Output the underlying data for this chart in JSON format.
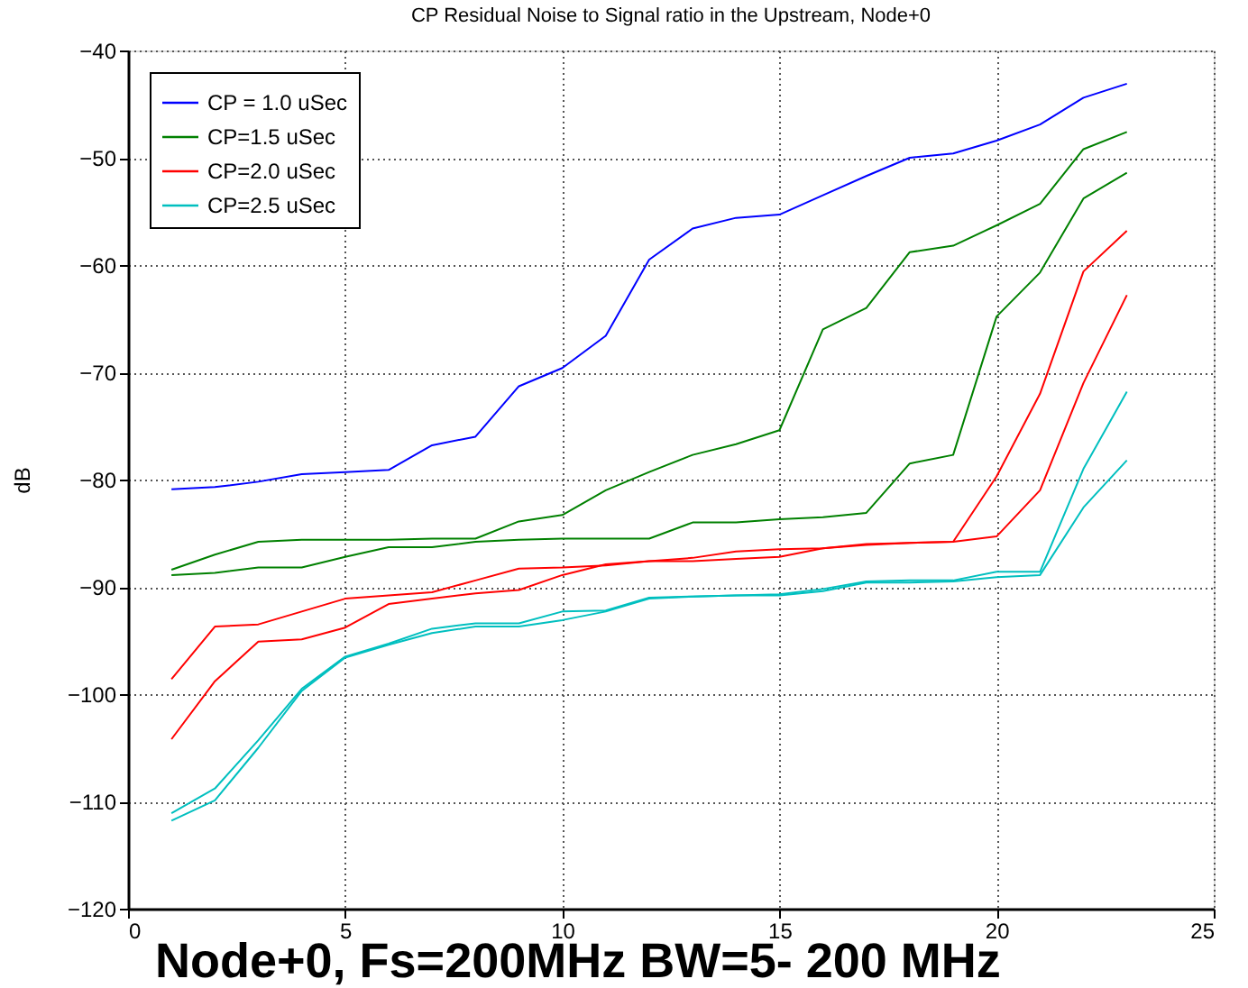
{
  "chart_data": {
    "type": "line",
    "title": "CP Residual Noise to Signal ratio in the Upstream, Node+0",
    "ylabel": "dB",
    "x": [
      1,
      2,
      3,
      4,
      5,
      6,
      7,
      8,
      9,
      10,
      11,
      12,
      13,
      14,
      15,
      16,
      17,
      18,
      19,
      20,
      21,
      22,
      23
    ],
    "xlim": [
      0,
      25
    ],
    "xticks": [
      0,
      5,
      10,
      15,
      20,
      25
    ],
    "ylim": [
      -120,
      -40
    ],
    "yticks": [
      -120,
      -110,
      -100,
      -90,
      -80,
      -70,
      -60,
      -50,
      -40
    ],
    "grid": true,
    "legend": "top left",
    "marker": "none",
    "line_style": "solid",
    "annotations": [
      "Node+0, Fs=200MHz BW=5- 200 MHz"
    ],
    "series": [
      {
        "name": "CP = 1.0 uSec",
        "color": "#0000ff",
        "values": [
          -80.9,
          -80.7,
          -80.2,
          -79.5,
          -79.3,
          -79.1,
          -76.8,
          -76.0,
          -71.3,
          -69.6,
          -66.6,
          -59.5,
          -56.6,
          -55.6,
          -55.3,
          -53.5,
          -51.7,
          -50.0,
          -49.6,
          -48.4,
          -46.9,
          -44.4,
          -43.1
        ]
      },
      {
        "name": "CP=1.5 uSec",
        "color": "#008000",
        "values": [
          -88.4,
          -87.0,
          -85.8,
          -85.6,
          -85.6,
          -85.6,
          -85.5,
          -85.5,
          -83.9,
          -83.3,
          -81.0,
          -79.3,
          -77.7,
          -76.7,
          -75.4,
          -66.0,
          -64.0,
          -58.8,
          -58.2,
          -56.3,
          -54.3,
          -49.2,
          -47.6
        ]
      },
      {
        "color": "#008000",
        "values": [
          -88.9,
          -88.7,
          -88.2,
          -88.2,
          -87.2,
          -86.3,
          -86.3,
          -85.8,
          -85.6,
          -85.5,
          -85.5,
          -85.5,
          -84.0,
          -84.0,
          -83.7,
          -83.5,
          -83.1,
          -78.5,
          -77.7,
          -64.8,
          -60.7,
          -53.8,
          -51.4
        ]
      },
      {
        "name": "CP=2.0 uSec",
        "color": "#ff0000",
        "values": [
          -98.6,
          -93.7,
          -93.5,
          -92.3,
          -91.1,
          -90.8,
          -90.5,
          -89.4,
          -88.3,
          -88.2,
          -88.0,
          -87.6,
          -87.3,
          -86.7,
          -86.5,
          -86.4,
          -86.1,
          -85.9,
          -85.8,
          -79.7,
          -72.0,
          -60.6,
          -56.8
        ]
      },
      {
        "color": "#ff0000",
        "values": [
          -104.2,
          -98.8,
          -95.1,
          -94.9,
          -93.8,
          -91.6,
          -91.1,
          -90.6,
          -90.3,
          -88.9,
          -87.9,
          -87.6,
          -87.6,
          -87.4,
          -87.2,
          -86.4,
          -86.0,
          -85.9,
          -85.8,
          -85.3,
          -81.0,
          -71.0,
          -62.8
        ]
      },
      {
        "name": "CP=2.5 uSec",
        "color": "#00bfbf",
        "values": [
          -111.1,
          -108.8,
          -104.3,
          -99.5,
          -96.5,
          -95.3,
          -93.9,
          -93.4,
          -93.4,
          -92.3,
          -92.2,
          -91.0,
          -90.9,
          -90.8,
          -90.7,
          -90.2,
          -89.5,
          -89.4,
          -89.4,
          -88.6,
          -88.6,
          -79.0,
          -71.8
        ]
      },
      {
        "color": "#00bfbf",
        "values": [
          -111.8,
          -109.9,
          -105.0,
          -99.7,
          -96.6,
          -95.4,
          -94.3,
          -93.7,
          -93.7,
          -93.1,
          -92.3,
          -91.1,
          -90.9,
          -90.8,
          -90.8,
          -90.4,
          -89.6,
          -89.6,
          -89.5,
          -89.1,
          -88.9,
          -82.6,
          -78.2
        ]
      }
    ]
  }
}
